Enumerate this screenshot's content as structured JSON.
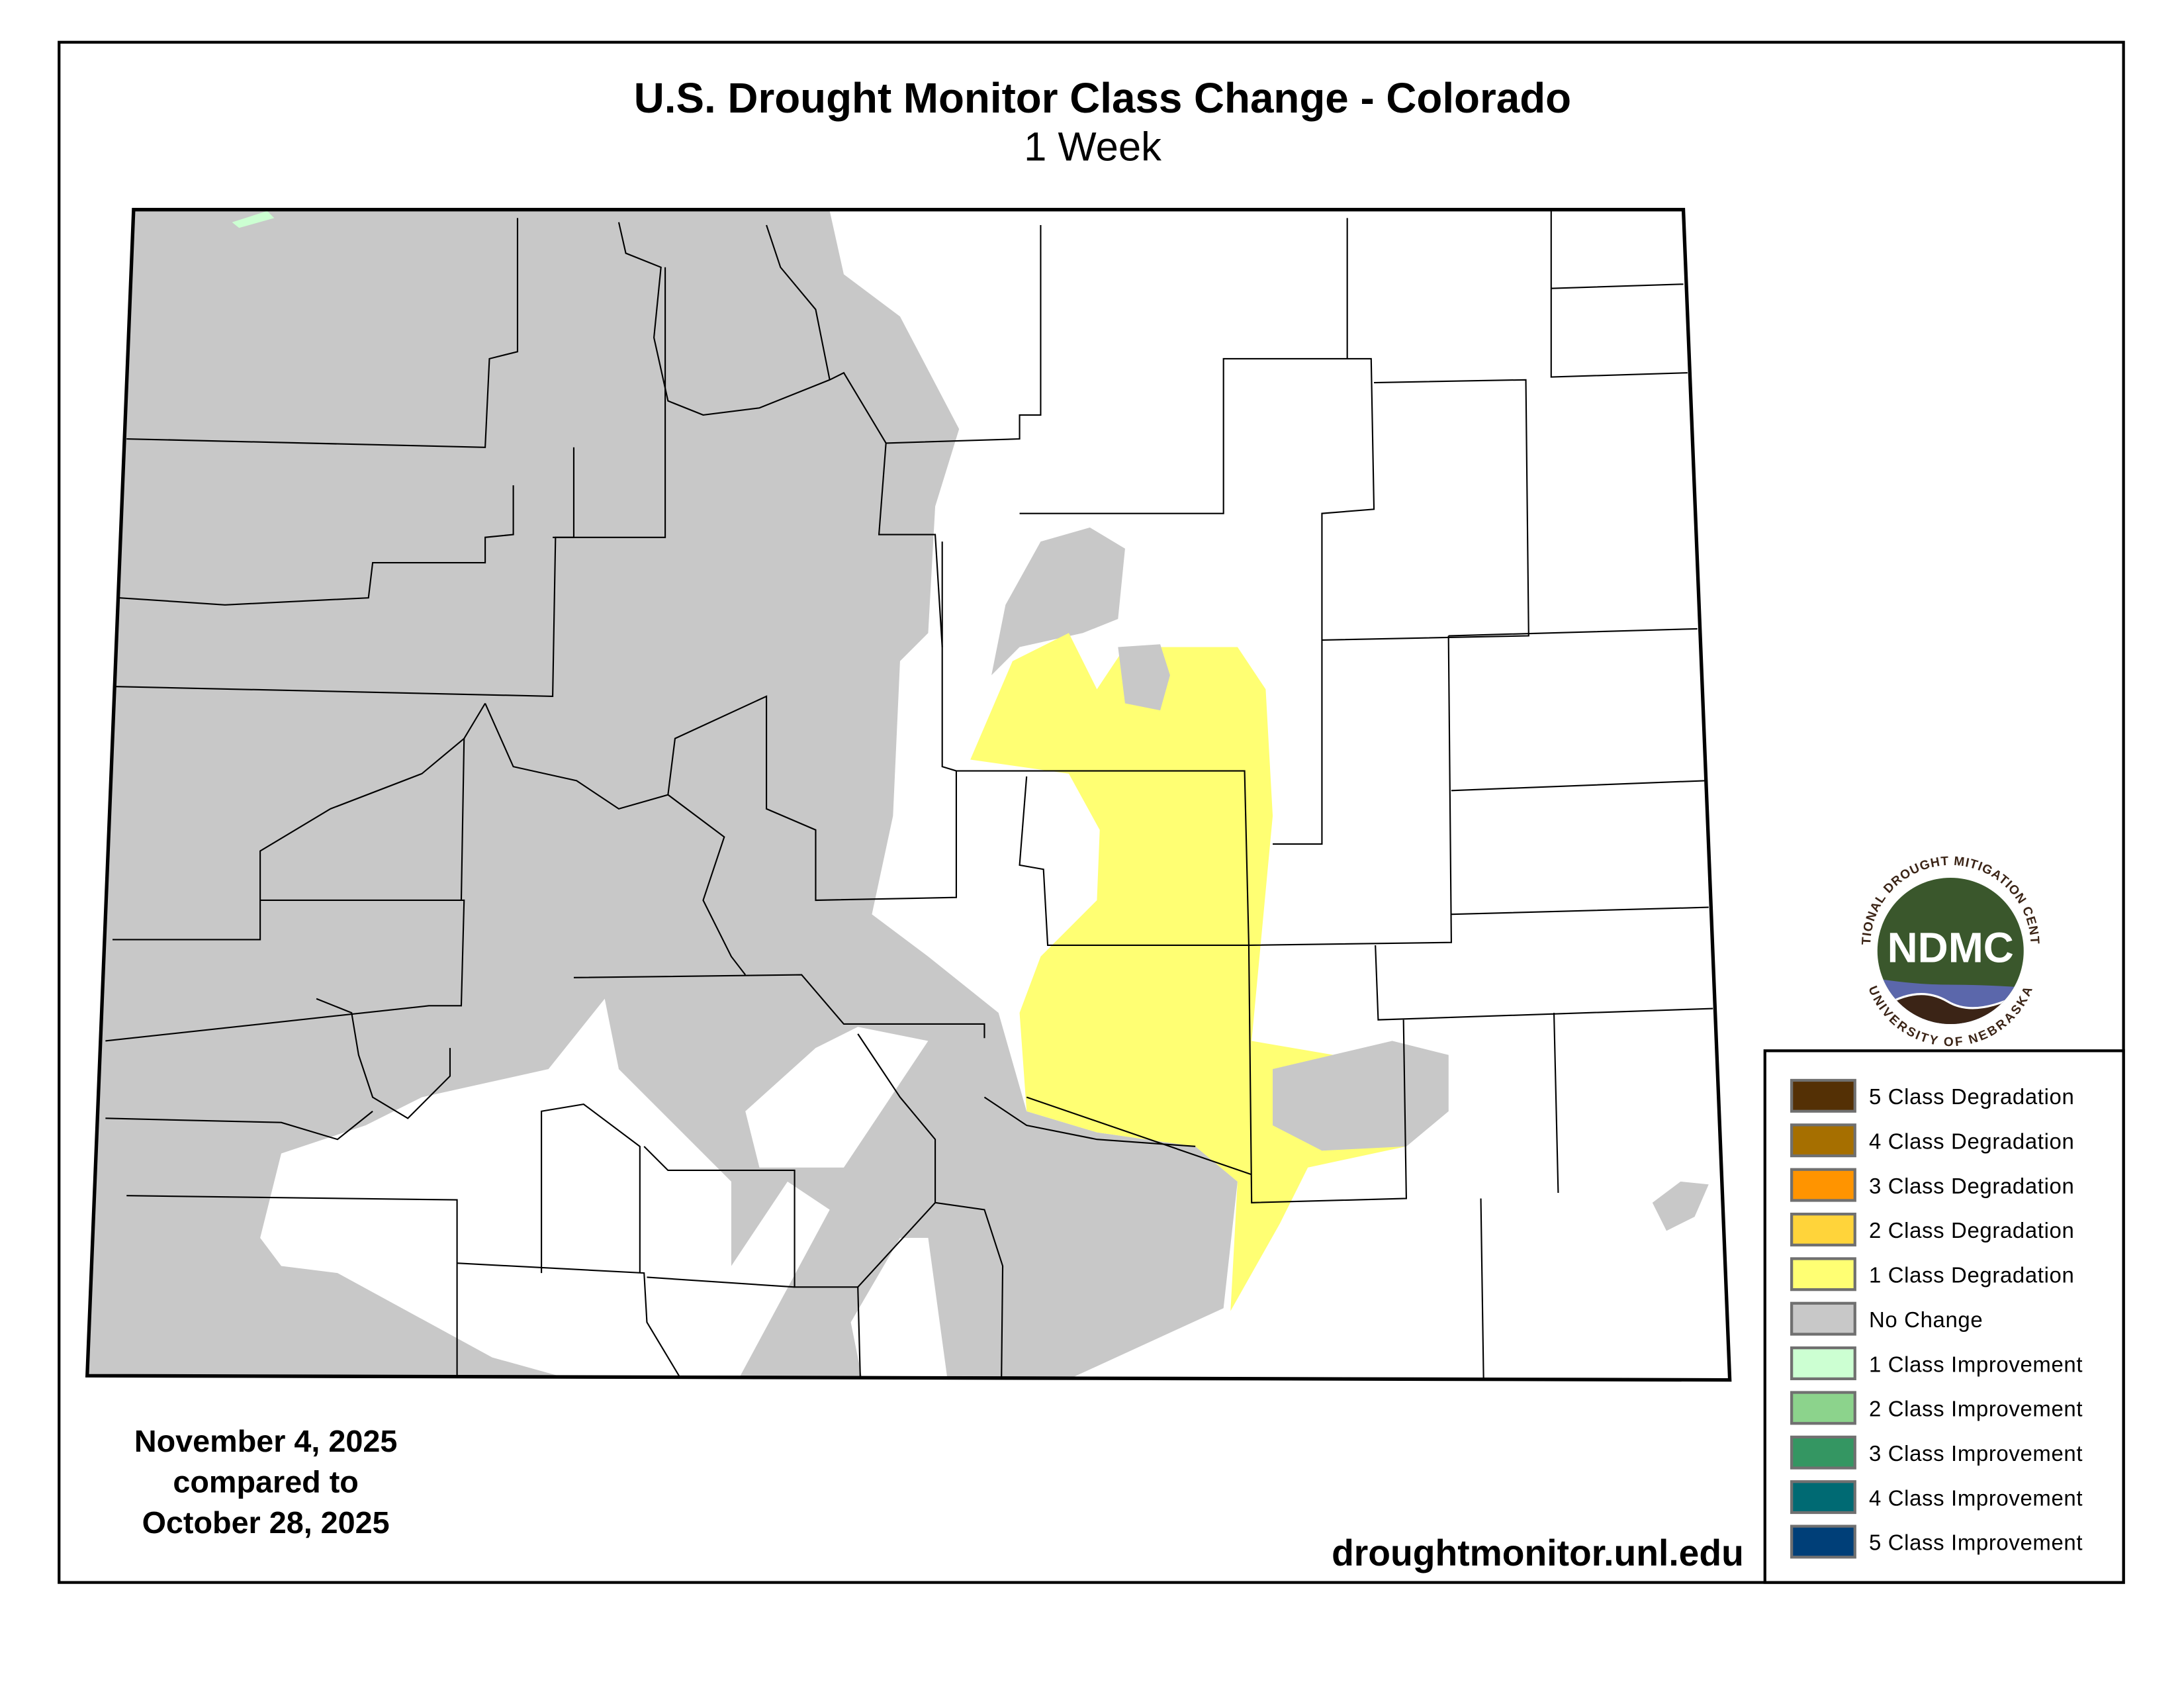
{
  "header": {
    "title": "U.S. Drought Monitor Class Change - Colorado",
    "subtitle": "1 Week"
  },
  "dates": {
    "current": "November 4, 2025",
    "compared_label": "compared to",
    "previous": "October 28, 2025"
  },
  "source_url": "droughtmonitor.unl.edu",
  "logo": {
    "text": "NDMC",
    "ring_top": "NATIONAL DROUGHT MITIGATION CENTER",
    "ring_bottom": "UNIVERSITY OF NEBRASKA"
  },
  "legend": {
    "items": [
      {
        "label": "5 Class Degradation",
        "color": "#543005"
      },
      {
        "label": "4 Class Degradation",
        "color": "#A66F00"
      },
      {
        "label": "3 Class Degradation",
        "color": "#FF9400"
      },
      {
        "label": "2 Class Degradation",
        "color": "#FFD43A"
      },
      {
        "label": "1 Class Degradation",
        "color": "#FFFF73"
      },
      {
        "label": "No Change",
        "color": "#C8C8C8"
      },
      {
        "label": "1 Class Improvement",
        "color": "#CCFFD2"
      },
      {
        "label": "2 Class Improvement",
        "color": "#8CD38C"
      },
      {
        "label": "3 Class Improvement",
        "color": "#349662"
      },
      {
        "label": "4 Class Improvement",
        "color": "#006A73"
      },
      {
        "label": "5 Class Improvement",
        "color": "#003F78"
      }
    ]
  },
  "map_colors": {
    "no_change": "#C8C8C8",
    "one_class_degradation": "#FFFF73",
    "one_class_improvement": "#CCFFD2",
    "no_drought_change_area": "#FFFFFF"
  }
}
